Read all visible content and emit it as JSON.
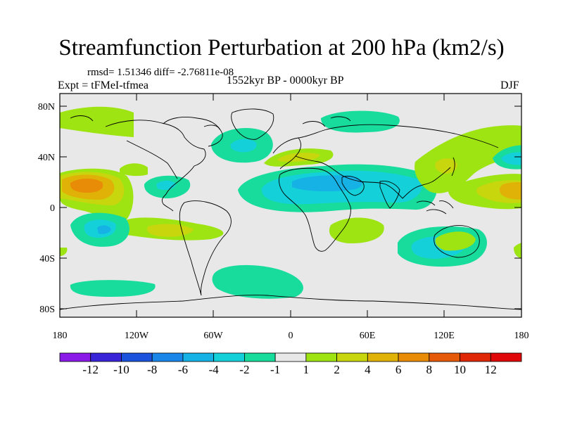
{
  "title": "Streamfunction Perturbation at 200 hPa (km2/s)",
  "stats": "rmsd= 1.51346 diff= -2.76811e-08",
  "experiment": "Expt = tFMeI-tfmea",
  "period": "1552kyr BP - 0000kyr BP",
  "season": "DJF",
  "lat_ticks": [
    "80N",
    "40N",
    "0",
    "40S",
    "80S"
  ],
  "lon_ticks": [
    "180",
    "120W",
    "60W",
    "0",
    "60E",
    "120E",
    "180"
  ],
  "colorbar": {
    "labels": [
      "-12",
      "-10",
      "-8",
      "-6",
      "-4",
      "-2",
      "-1",
      "1",
      "2",
      "4",
      "6",
      "8",
      "10",
      "12"
    ],
    "colors": [
      "#8a1ae8",
      "#3a24d8",
      "#1c53dc",
      "#1a86e8",
      "#16b2e6",
      "#14d0d8",
      "#18dc9c",
      "#e8e8e8",
      "#9ee412",
      "#c8d60e",
      "#e0b208",
      "#e88c08",
      "#e45a08",
      "#e02808",
      "#e00808"
    ]
  },
  "colors": {
    "land_outline": "#000000",
    "background": "#e8e8e8"
  }
}
